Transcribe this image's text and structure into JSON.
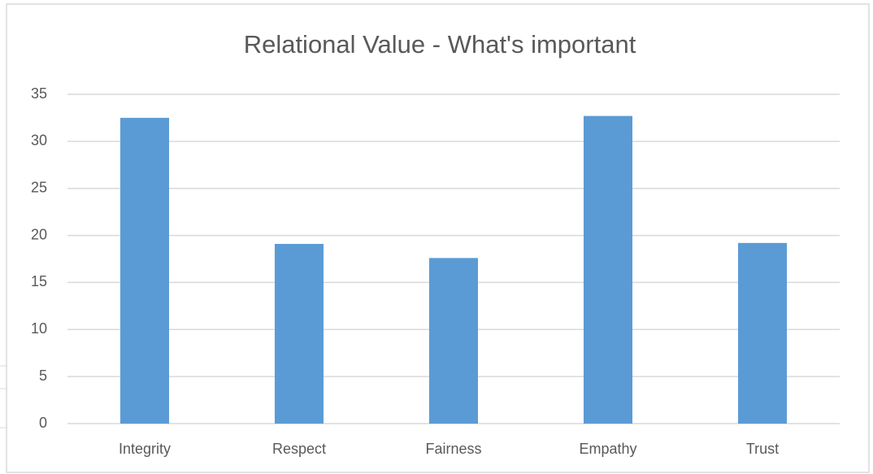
{
  "chart_data": {
    "type": "bar",
    "title": "Relational Value - What's important",
    "categories": [
      "Integrity",
      "Respect",
      "Fairness",
      "Empathy",
      "Trust"
    ],
    "values": [
      32.5,
      19.1,
      17.6,
      32.7,
      19.2
    ],
    "color": "#5b9bd5",
    "ylim": [
      0,
      35
    ],
    "yticks": [
      0,
      5,
      10,
      15,
      20,
      25,
      30,
      35
    ],
    "grid": true
  }
}
